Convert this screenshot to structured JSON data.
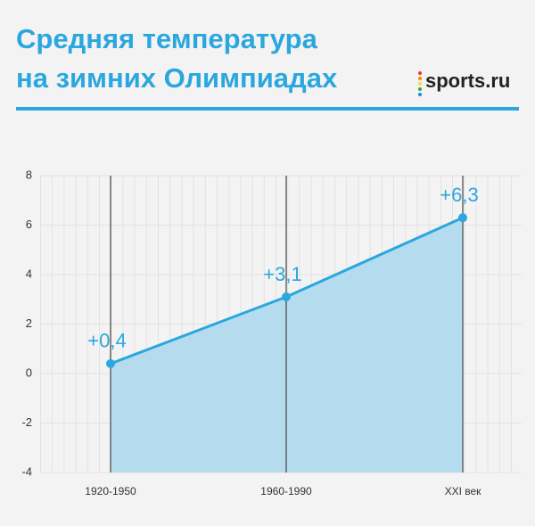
{
  "title": "Средняя температура",
  "subtitle": "на зимних Олимпиадах",
  "logo": "sports.ru",
  "chart_data": {
    "type": "area",
    "categories": [
      "1920-1950",
      "1960-1990",
      "XXI век"
    ],
    "values": [
      0.4,
      3.1,
      6.3
    ],
    "value_labels": [
      "+0,4",
      "+3,1",
      "+6,3"
    ],
    "color": "#2ba7df",
    "fill": "#b5dcee",
    "ylim": [
      -4,
      8
    ],
    "yticks": [
      -4,
      -2,
      0,
      2,
      4,
      6,
      8
    ],
    "grid": true
  }
}
